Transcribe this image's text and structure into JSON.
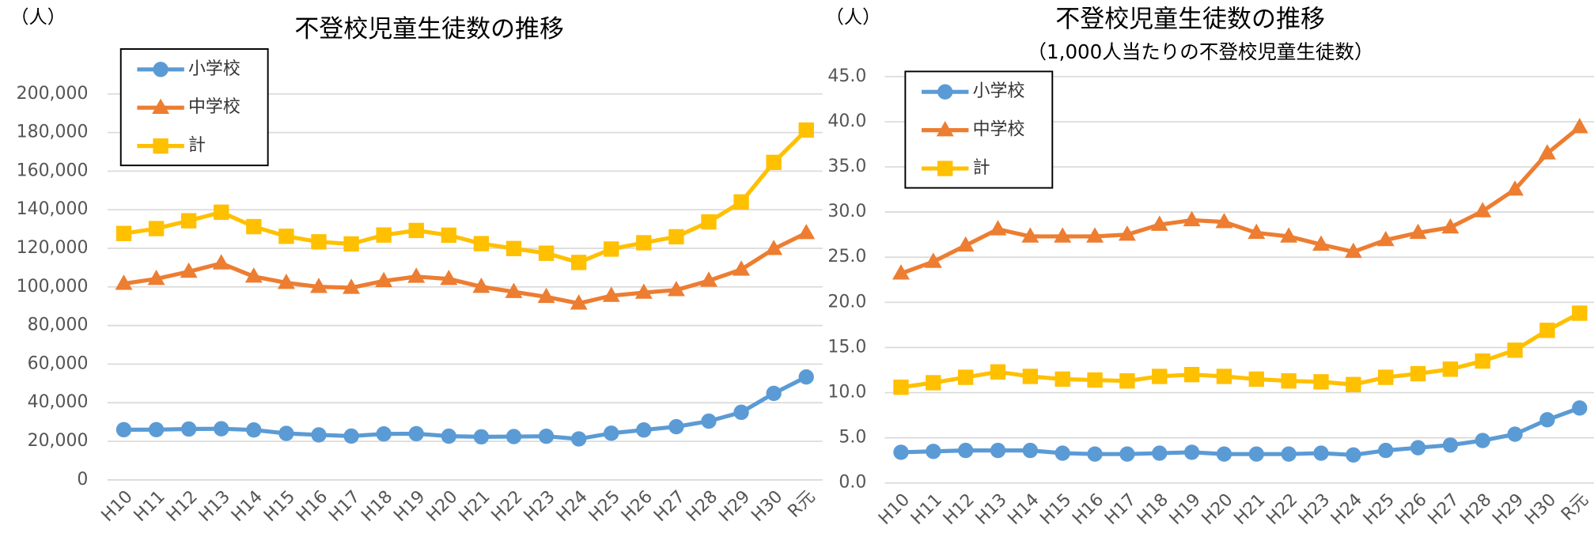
{
  "chart_data": [
    {
      "type": "line",
      "title": "不登校児童生徒数の推移",
      "y_unit_label": "（人）",
      "categories": [
        "H10",
        "H11",
        "H12",
        "H13",
        "H14",
        "H15",
        "H16",
        "H17",
        "H18",
        "H19",
        "H20",
        "H21",
        "H22",
        "H23",
        "H24",
        "H25",
        "H26",
        "H27",
        "H28",
        "H29",
        "H30",
        "R元"
      ],
      "ylim": [
        0,
        200000
      ],
      "yticks": [
        0,
        {
          "value": 20000,
          "label": "20,000"
        },
        {
          "value": 40000,
          "label": "40,000"
        },
        {
          "value": 60000,
          "label": "60,000"
        },
        {
          "value": 80000,
          "label": "80,000"
        },
        {
          "value": 100000,
          "label": "100,000"
        },
        {
          "value": 120000,
          "label": "120,000"
        },
        {
          "value": 140000,
          "label": "140,000"
        },
        {
          "value": 160000,
          "label": "160,000"
        },
        {
          "value": 180000,
          "label": "180,000"
        },
        {
          "value": 200000,
          "label": "200,000"
        }
      ],
      "grid": true,
      "series": [
        {
          "name": "小学校",
          "color": "#5b9bd5",
          "marker": "circle",
          "values": [
            26017,
            26047,
            26373,
            26511,
            25869,
            24077,
            23318,
            22709,
            23825,
            23927,
            22652,
            22327,
            22463,
            22622,
            21243,
            24175,
            25864,
            27583,
            30448,
            35032,
            44841,
            53350
          ]
        },
        {
          "name": "中学校",
          "color": "#ed7d31",
          "marker": "triangle",
          "values": [
            101675,
            104180,
            107913,
            112211,
            105383,
            102149,
            100040,
            99578,
            103069,
            105328,
            104153,
            100105,
            97428,
            94836,
            91446,
            95442,
            97033,
            98408,
            103235,
            108999,
            119687,
            127922
          ]
        },
        {
          "name": "計",
          "color": "#ffc000",
          "marker": "square",
          "values": [
            127692,
            130227,
            134286,
            138722,
            131252,
            126226,
            123358,
            122287,
            126894,
            129255,
            126805,
            122432,
            119891,
            117458,
            112689,
            119617,
            122897,
            125991,
            133683,
            144031,
            164528,
            181272
          ]
        }
      ]
    },
    {
      "type": "line",
      "title": "不登校児童生徒数の推移",
      "subtitle": "（1,000人当たりの不登校児童生徒数）",
      "y_unit_label": "（人）",
      "categories": [
        "H10",
        "H11",
        "H12",
        "H13",
        "H14",
        "H15",
        "H16",
        "H17",
        "H18",
        "H19",
        "H20",
        "H21",
        "H22",
        "H23",
        "H24",
        "H25",
        "H26",
        "H27",
        "H28",
        "H29",
        "H30",
        "R元"
      ],
      "ylim": [
        0,
        45
      ],
      "yticks": [
        {
          "value": 0,
          "label": "0.0"
        },
        {
          "value": 5,
          "label": "5.0"
        },
        {
          "value": 10,
          "label": "10.0"
        },
        {
          "value": 15,
          "label": "15.0"
        },
        {
          "value": 20,
          "label": "20.0"
        },
        {
          "value": 25,
          "label": "25.0"
        },
        {
          "value": 30,
          "label": "30.0"
        },
        {
          "value": 35,
          "label": "35.0"
        },
        {
          "value": 40,
          "label": "40.0"
        },
        {
          "value": 45,
          "label": "45.0"
        }
      ],
      "grid": true,
      "series": [
        {
          "name": "小学校",
          "color": "#5b9bd5",
          "marker": "circle",
          "values": [
            3.4,
            3.5,
            3.6,
            3.6,
            3.6,
            3.3,
            3.2,
            3.2,
            3.3,
            3.4,
            3.2,
            3.2,
            3.2,
            3.3,
            3.1,
            3.6,
            3.9,
            4.2,
            4.7,
            5.4,
            7.0,
            8.3
          ]
        },
        {
          "name": "中学校",
          "color": "#ed7d31",
          "marker": "triangle",
          "values": [
            23.2,
            24.5,
            26.3,
            28.1,
            27.3,
            27.3,
            27.3,
            27.5,
            28.6,
            29.1,
            28.9,
            27.7,
            27.3,
            26.4,
            25.6,
            26.9,
            27.7,
            28.3,
            30.1,
            32.5,
            36.5,
            39.4
          ]
        },
        {
          "name": "計",
          "color": "#ffc000",
          "marker": "square",
          "values": [
            10.6,
            11.1,
            11.7,
            12.3,
            11.8,
            11.5,
            11.4,
            11.3,
            11.8,
            12.0,
            11.8,
            11.5,
            11.3,
            11.2,
            10.9,
            11.7,
            12.1,
            12.6,
            13.5,
            14.7,
            16.9,
            18.8
          ]
        }
      ]
    }
  ]
}
